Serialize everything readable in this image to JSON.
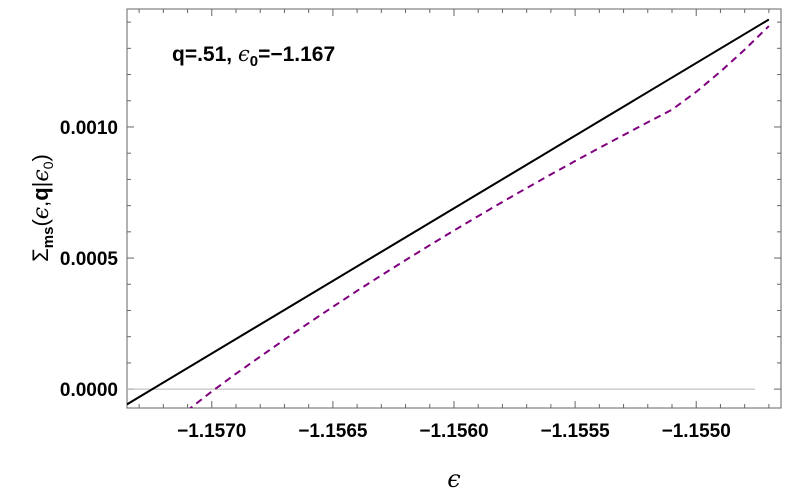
{
  "chart_data": {
    "type": "line",
    "title": "",
    "annotation": "q=.51, ϵ₀=−1.167",
    "xlabel": "ϵ",
    "ylabel": "Σms(ϵ,q|ϵ₀)",
    "xlim": [
      -1.15735,
      -1.15465
    ],
    "ylim": [
      -7.2e-05,
      0.00145
    ],
    "xticks": [
      -1.157,
      -1.1565,
      -1.156,
      -1.1555,
      -1.155
    ],
    "xtick_labels": [
      "−1.1570",
      "−1.1565",
      "−1.1560",
      "−1.1555",
      "−1.1550"
    ],
    "yticks": [
      0.0,
      0.0005,
      0.001
    ],
    "ytick_labels": [
      "0.0000",
      "0.0005",
      "0.0010"
    ],
    "grid": false,
    "zero_line": true,
    "series": [
      {
        "style": "solid",
        "color": "#000000",
        "x": [
          -1.15735,
          -1.1547
        ],
        "y": [
          -5.8e-05,
          0.00141
        ]
      },
      {
        "style": "dashed",
        "color": "#800080",
        "x": [
          -1.15718,
          -1.1571,
          -1.157,
          -1.1569,
          -1.1568,
          -1.1567,
          -1.1566,
          -1.1565,
          -1.1564,
          -1.1563,
          -1.1562,
          -1.1561,
          -1.156,
          -1.1559,
          -1.1558,
          -1.1557,
          -1.1556,
          -1.1555,
          -1.1554,
          -1.1553,
          -1.1552,
          -1.1551,
          -1.155,
          -1.1549,
          -1.1548,
          -1.1547
        ],
        "y": [
          -0.000141,
          -8.1e-05,
          -9e-06,
          5.9e-05,
          0.000124,
          0.000189,
          0.000252,
          0.000314,
          0.000375,
          0.000434,
          0.000492,
          0.000549,
          0.000605,
          0.00066,
          0.000714,
          0.000767,
          0.000819,
          0.00087,
          0.00092,
          0.000969,
          0.001018,
          0.001066,
          0.001134,
          0.001211,
          0.001295,
          0.001385
        ]
      }
    ]
  }
}
